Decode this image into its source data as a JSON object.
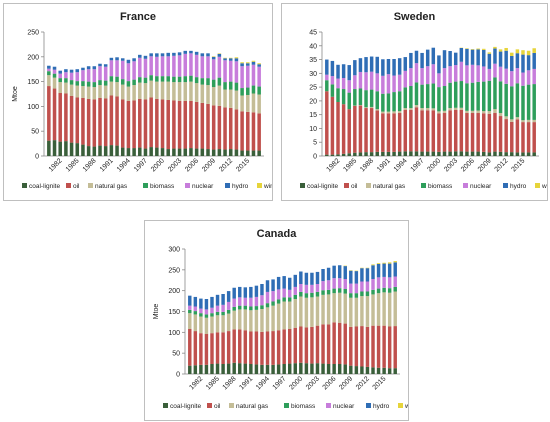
{
  "legend_labels": [
    "coal-lignite",
    "oil",
    "natural gas",
    "biomass",
    "nuclear",
    "hydro",
    "wind-solar"
  ],
  "colors": {
    "coal-lignite": "#3a5f3a",
    "oil": "#c0504d",
    "natural gas": "#c4bd97",
    "biomass": "#2e9e5b",
    "nuclear": "#c77ddb",
    "hydro": "#2f6db5",
    "wind-solar": "#e6d43a"
  },
  "chart_data": [
    {
      "type": "bar",
      "stacked": true,
      "title": "France",
      "ylabel": "Mtoe",
      "ylim": [
        0,
        250
      ],
      "yticks": [
        0,
        50,
        100,
        150,
        200,
        250
      ],
      "xtick_labels": [
        "1982",
        "1985",
        "1988",
        "1991",
        "1994",
        "1997",
        "2000",
        "2003",
        "2006",
        "2009",
        "2012",
        "2015"
      ],
      "legend_position": "bottom",
      "grid": false,
      "categories": [
        1980,
        1981,
        1982,
        1983,
        1984,
        1985,
        1986,
        1987,
        1988,
        1989,
        1990,
        1991,
        1992,
        1993,
        1994,
        1995,
        1996,
        1997,
        1998,
        1999,
        2000,
        2001,
        2002,
        2003,
        2004,
        2005,
        2006,
        2007,
        2008,
        2009,
        2010,
        2011,
        2012,
        2013,
        2014,
        2015,
        2016,
        2017
      ],
      "series": [
        {
          "name": "coal-lignite",
          "values": [
            31,
            32,
            29,
            30,
            27,
            26,
            23,
            20,
            19,
            21,
            20,
            22,
            21,
            17,
            16,
            16,
            17,
            15,
            18,
            17,
            16,
            14,
            15,
            15,
            15,
            16,
            15,
            15,
            14,
            13,
            14,
            13,
            14,
            13,
            11,
            11,
            11,
            11
          ]
        },
        {
          "name": "oil",
          "values": [
            110,
            104,
            98,
            96,
            94,
            92,
            94,
            95,
            95,
            96,
            96,
            100,
            99,
            97,
            95,
            96,
            98,
            99,
            100,
            98,
            98,
            99,
            97,
            96,
            96,
            95,
            94,
            92,
            91,
            89,
            87,
            85,
            83,
            81,
            79,
            78,
            77,
            75
          ]
        },
        {
          "name": "natural gas",
          "values": [
            22,
            22,
            22,
            22,
            23,
            24,
            24,
            25,
            25,
            26,
            26,
            28,
            29,
            30,
            29,
            31,
            33,
            33,
            34,
            35,
            36,
            37,
            37,
            38,
            38,
            39,
            38,
            37,
            38,
            37,
            41,
            36,
            37,
            38,
            32,
            34,
            38,
            38
          ]
        },
        {
          "name": "biomass",
          "values": [
            8,
            8,
            8,
            9,
            9,
            9,
            10,
            10,
            10,
            10,
            10,
            11,
            11,
            11,
            11,
            11,
            11,
            11,
            11,
            11,
            11,
            11,
            11,
            11,
            12,
            12,
            12,
            13,
            14,
            15,
            16,
            15,
            16,
            16,
            15,
            15,
            16,
            16
          ]
        },
        {
          "name": "nuclear",
          "values": [
            5,
            8,
            9,
            12,
            15,
            18,
            22,
            25,
            26,
            28,
            28,
            32,
            33,
            37,
            36,
            37,
            39,
            38,
            38,
            39,
            40,
            40,
            42,
            43,
            45,
            45,
            45,
            44,
            44,
            41,
            42,
            44,
            42,
            43,
            44,
            44,
            42,
            40
          ]
        },
        {
          "name": "hydro",
          "values": [
            6,
            6,
            6,
            6,
            6,
            6,
            5,
            6,
            6,
            5,
            5,
            5,
            6,
            5,
            7,
            6,
            6,
            6,
            6,
            7,
            6,
            7,
            6,
            6,
            6,
            5,
            6,
            6,
            6,
            5,
            6,
            4,
            5,
            6,
            6,
            5,
            6,
            5
          ]
        },
        {
          "name": "wind-solar",
          "values": [
            0,
            0,
            0,
            0,
            0,
            0,
            0,
            0,
            0,
            0,
            0,
            0,
            0,
            0,
            0,
            0,
            0,
            0,
            0,
            0,
            0,
            0,
            0,
            0,
            0,
            0,
            0,
            0,
            0,
            1,
            1,
            1,
            1,
            2,
            2,
            2,
            2,
            2
          ]
        }
      ]
    },
    {
      "type": "bar",
      "stacked": true,
      "title": "Sweden",
      "ylabel": "",
      "ylim": [
        0,
        45
      ],
      "yticks": [
        0,
        5,
        10,
        15,
        20,
        25,
        30,
        35,
        40,
        45
      ],
      "xtick_labels": [
        "1982",
        "1985",
        "1988",
        "1991",
        "1994",
        "1997",
        "2000",
        "2003",
        "2006",
        "2009",
        "2012",
        "2015"
      ],
      "legend_position": "bottom",
      "grid": false,
      "categories": [
        1980,
        1981,
        1982,
        1983,
        1984,
        1985,
        1986,
        1987,
        1988,
        1989,
        1990,
        1991,
        1992,
        1993,
        1994,
        1995,
        1996,
        1997,
        1998,
        1999,
        2000,
        2001,
        2002,
        2003,
        2004,
        2005,
        2006,
        2007,
        2008,
        2009,
        2010,
        2011,
        2012,
        2013,
        2014,
        2015,
        2016,
        2017
      ],
      "series": [
        {
          "name": "coal-lignite",
          "values": [
            0.5,
            0.5,
            0.6,
            0.8,
            1,
            1.2,
            1.3,
            1.4,
            1.4,
            1.5,
            1.5,
            1.5,
            1.5,
            1.6,
            1.7,
            1.7,
            1.7,
            1.6,
            1.6,
            1.6,
            1.5,
            1.6,
            1.6,
            1.7,
            1.7,
            1.6,
            1.6,
            1.6,
            1.5,
            1.3,
            1.6,
            1.5,
            1.4,
            1.4,
            1.3,
            1.3,
            1.3,
            1.3
          ]
        },
        {
          "name": "oil",
          "values": [
            23,
            21,
            19,
            18,
            16,
            17,
            17,
            16,
            16,
            15,
            14,
            14,
            14,
            14,
            15,
            15,
            16,
            15,
            15,
            15,
            14,
            14,
            15,
            15,
            15,
            14,
            14,
            14,
            14,
            14,
            14,
            13,
            12,
            11,
            12,
            11,
            11,
            11
          ]
        },
        {
          "name": "natural gas",
          "values": [
            0,
            0,
            0,
            0,
            0,
            0.1,
            0.2,
            0.3,
            0.4,
            0.5,
            0.6,
            0.6,
            0.7,
            0.7,
            0.7,
            0.7,
            0.8,
            0.8,
            0.8,
            0.7,
            0.7,
            0.8,
            0.8,
            0.8,
            0.8,
            0.8,
            0.8,
            0.9,
            0.8,
            1,
            1.4,
            1.1,
            1,
            0.9,
            0.8,
            0.7,
            0.8,
            0.8
          ]
        },
        {
          "name": "biomass",
          "values": [
            4,
            4.5,
            5,
            5.5,
            6,
            6,
            6,
            6.2,
            6.3,
            6.5,
            6.5,
            6.6,
            7,
            7.2,
            7.5,
            8,
            8.2,
            8.5,
            8.7,
            9,
            8.8,
            9,
            9.2,
            9.5,
            9.7,
            10,
            10.2,
            10.4,
            10.7,
            11,
            11.5,
            11.5,
            11.8,
            12,
            12.3,
            12.5,
            12.8,
            13
          ]
        },
        {
          "name": "nuclear",
          "values": [
            2,
            3,
            3.5,
            4,
            4.5,
            5,
            6,
            6.5,
            6.5,
            6.5,
            6.5,
            7,
            6,
            6,
            6,
            6.5,
            7,
            6,
            6.5,
            7,
            5,
            6.5,
            6,
            6,
            7,
            6.5,
            6.5,
            6,
            5.5,
            4.3,
            5,
            5.3,
            5.5,
            5.5,
            5.5,
            4.8,
            5.2,
            5.5
          ]
        },
        {
          "name": "hydro",
          "values": [
            5.5,
            5.5,
            5,
            5,
            5.5,
            5.5,
            5,
            5.5,
            5.5,
            6,
            6,
            5.5,
            6,
            6,
            5,
            5.5,
            4.5,
            5.5,
            6,
            6,
            6.5,
            6.5,
            5.5,
            4.5,
            5,
            6,
            5.5,
            5.8,
            6,
            5.5,
            5.5,
            5.5,
            6.5,
            5.5,
            5.4,
            6.5,
            5.5,
            5.8
          ]
        },
        {
          "name": "wind-solar",
          "values": [
            0,
            0,
            0,
            0,
            0,
            0,
            0,
            0,
            0,
            0,
            0,
            0,
            0,
            0,
            0,
            0,
            0,
            0,
            0,
            0,
            0,
            0,
            0,
            0,
            0.1,
            0.2,
            0.2,
            0.3,
            0.4,
            0.5,
            0.6,
            0.8,
            1,
            1.2,
            1.4,
            1.6,
            1.6,
            1.7
          ]
        }
      ]
    },
    {
      "type": "bar",
      "stacked": true,
      "title": "Canada",
      "ylabel": "Mtoe",
      "ylim": [
        0,
        300
      ],
      "yticks": [
        0,
        50,
        100,
        150,
        200,
        250,
        300
      ],
      "xtick_labels": [
        "1982",
        "1985",
        "1988",
        "1991",
        "1994",
        "1997",
        "2000",
        "2003",
        "2006",
        "2009",
        "2012",
        "2015"
      ],
      "legend_position": "bottom",
      "grid": false,
      "categories": [
        1980,
        1981,
        1982,
        1983,
        1984,
        1985,
        1986,
        1987,
        1988,
        1989,
        1990,
        1991,
        1992,
        1993,
        1994,
        1995,
        1996,
        1997,
        1998,
        1999,
        2000,
        2001,
        2002,
        2003,
        2004,
        2005,
        2006,
        2007,
        2008,
        2009,
        2010,
        2011,
        2012,
        2013,
        2014,
        2015,
        2016,
        2017
      ],
      "series": [
        {
          "name": "coal-lignite",
          "values": [
            20,
            21,
            22,
            22,
            24,
            25,
            24,
            25,
            27,
            26,
            25,
            24,
            23,
            22,
            22,
            22,
            23,
            24,
            25,
            26,
            27,
            26,
            25,
            26,
            25,
            24,
            24,
            24,
            23,
            20,
            19,
            18,
            17,
            16,
            15,
            15,
            14,
            14
          ]
        },
        {
          "name": "oil",
          "values": [
            88,
            82,
            76,
            74,
            74,
            75,
            76,
            78,
            80,
            81,
            80,
            78,
            79,
            79,
            80,
            81,
            82,
            83,
            83,
            85,
            87,
            86,
            88,
            90,
            94,
            95,
            100,
            99,
            98,
            93,
            95,
            97,
            96,
            100,
            101,
            101,
            100,
            101
          ]
        },
        {
          "name": "natural gas",
          "values": [
            38,
            40,
            40,
            39,
            40,
            41,
            41,
            42,
            45,
            48,
            50,
            51,
            52,
            55,
            58,
            61,
            64,
            67,
            66,
            69,
            72,
            71,
            71,
            70,
            71,
            72,
            70,
            72,
            72,
            70,
            69,
            72,
            74,
            75,
            78,
            80,
            81,
            83
          ]
        },
        {
          "name": "biomass",
          "values": [
            8,
            8,
            8,
            8,
            8,
            8,
            8,
            9,
            9,
            9,
            9,
            9,
            9,
            9,
            10,
            10,
            10,
            10,
            10,
            10,
            11,
            11,
            11,
            11,
            11,
            11,
            11,
            11,
            11,
            11,
            11,
            11,
            11,
            11,
            11,
            11,
            11,
            11
          ]
        },
        {
          "name": "nuclear",
          "values": [
            10,
            11,
            11,
            12,
            13,
            15,
            17,
            19,
            20,
            20,
            19,
            21,
            22,
            24,
            27,
            25,
            24,
            21,
            18,
            19,
            19,
            20,
            19,
            19,
            22,
            23,
            25,
            24,
            24,
            23,
            23,
            24,
            24,
            26,
            27,
            26,
            26,
            25
          ]
        },
        {
          "name": "hydro",
          "values": [
            24,
            23,
            24,
            25,
            26,
            26,
            26,
            26,
            26,
            25,
            25,
            26,
            27,
            27,
            28,
            28,
            30,
            30,
            29,
            29,
            30,
            29,
            29,
            29,
            29,
            30,
            30,
            31,
            31,
            31,
            30,
            32,
            32,
            33,
            32,
            32,
            33,
            34
          ]
        },
        {
          "name": "wind-solar",
          "values": [
            0,
            0,
            0,
            0,
            0,
            0,
            0,
            0,
            0,
            0,
            0,
            0,
            0,
            0,
            0,
            0,
            0,
            0,
            0,
            0,
            0,
            0,
            0,
            0,
            0,
            0,
            0,
            0,
            1,
            1,
            1,
            1,
            1,
            2,
            2,
            2,
            3,
            3
          ]
        }
      ]
    }
  ]
}
